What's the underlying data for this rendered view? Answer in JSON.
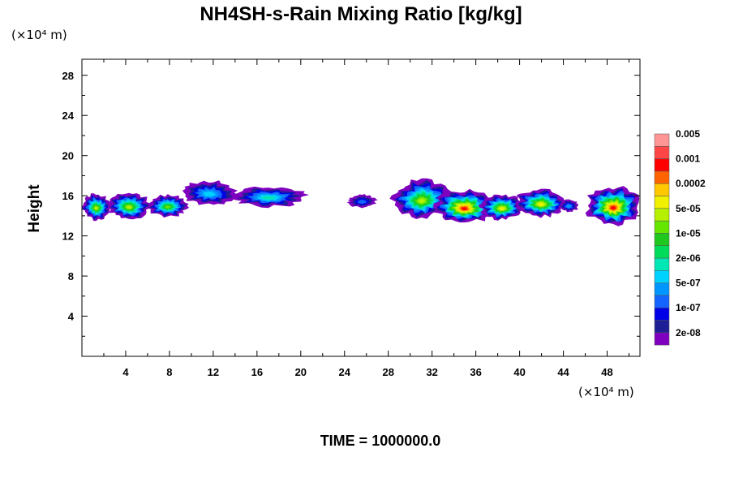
{
  "chart_data": {
    "type": "heatmap",
    "title": "NH4SH-s-Rain Mixing Ratio [kg/kg]",
    "ylabel": "Height",
    "xlabel": "",
    "x_unit": "(×10⁴ m)",
    "y_unit": "(×10⁴ m)",
    "xlim": [
      0,
      51
    ],
    "ylim": [
      0,
      29.6
    ],
    "x_ticks": [
      4,
      8,
      12,
      16,
      20,
      24,
      28,
      32,
      36,
      40,
      44,
      48
    ],
    "y_ticks": [
      4,
      8,
      12,
      16,
      20,
      24,
      28
    ],
    "footer": "TIME = 1000000.0",
    "colorbar": {
      "colors": [
        "#7f00bf",
        "#1e1e96",
        "#0000e6",
        "#1464ff",
        "#0096ff",
        "#00d2ff",
        "#00e6b4",
        "#00dc5a",
        "#1ec81e",
        "#64e600",
        "#b4f000",
        "#f0f000",
        "#ffc800",
        "#ff6400",
        "#ff0000",
        "#ff4646",
        "#ff9696"
      ],
      "labels": [
        "2e-08",
        "1e-07",
        "5e-07",
        "2e-06",
        "1e-05",
        "5e-05",
        "0.0002",
        "0.001",
        "0.005"
      ]
    },
    "cloud_patches": [
      {
        "x0": 0.0,
        "x1": 2.6,
        "y0": 13.6,
        "y1": 16.2,
        "peak": 10
      },
      {
        "x0": 2.3,
        "x1": 6.3,
        "y0": 13.7,
        "y1": 16.3,
        "peak": 10
      },
      {
        "x0": 6.0,
        "x1": 9.7,
        "y0": 13.9,
        "y1": 16.1,
        "peak": 9
      },
      {
        "x0": 9.1,
        "x1": 14.1,
        "y0": 15.1,
        "y1": 17.5,
        "peak": 5
      },
      {
        "x0": 13.6,
        "x1": 20.5,
        "y0": 14.9,
        "y1": 16.9,
        "peak": 6
      },
      {
        "x0": 24.3,
        "x1": 26.9,
        "y0": 14.8,
        "y1": 16.1,
        "peak": 3
      },
      {
        "x0": 28.4,
        "x1": 33.7,
        "y0": 13.8,
        "y1": 17.6,
        "peak": 10
      },
      {
        "x0": 32.3,
        "x1": 37.6,
        "y0": 13.2,
        "y1": 16.6,
        "peak": 14
      },
      {
        "x0": 36.4,
        "x1": 40.4,
        "y0": 13.6,
        "y1": 16.1,
        "peak": 11
      },
      {
        "x0": 39.6,
        "x1": 44.3,
        "y0": 13.9,
        "y1": 16.7,
        "peak": 11
      },
      {
        "x0": 43.6,
        "x1": 45.4,
        "y0": 14.4,
        "y1": 15.6,
        "peak": 4
      },
      {
        "x0": 46.1,
        "x1": 51.0,
        "y0": 13.1,
        "y1": 16.9,
        "peak": 14
      }
    ]
  }
}
